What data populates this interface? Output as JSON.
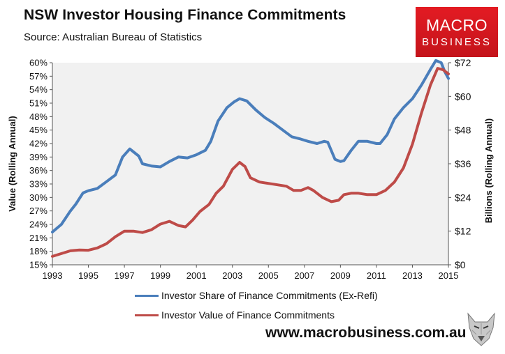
{
  "title": "NSW Investor Housing Finance Commitments",
  "subtitle": "Source: Australian Bureau of Statistics",
  "logo": {
    "line1": "MACRO",
    "line2": "BUSINESS"
  },
  "footer": "www.macrobusiness.com.au",
  "colors": {
    "share": "#4a7ebb",
    "value": "#be4b48",
    "logo_bg": "#e31b23",
    "plot_bg": "#f1f1f1"
  },
  "chart_data": {
    "type": "line",
    "title": "NSW Investor Housing Finance Commitments",
    "xlabel": "",
    "ylabel_left": "Value (Rolling Annual)",
    "ylabel_right": "Billions (Rolling Annual)",
    "xlim": [
      1993,
      2015
    ],
    "ylim_left": [
      15,
      60
    ],
    "ylim_right": [
      0,
      72
    ],
    "x_ticks": [
      "1993",
      "1995",
      "1997",
      "1999",
      "2001",
      "2003",
      "2005",
      "2007",
      "2009",
      "2011",
      "2013",
      "2015"
    ],
    "y_left_ticks": [
      "15%",
      "18%",
      "21%",
      "24%",
      "27%",
      "30%",
      "33%",
      "36%",
      "39%",
      "42%",
      "45%",
      "48%",
      "51%",
      "54%",
      "57%",
      "60%"
    ],
    "y_right_ticks": [
      "$0",
      "$12",
      "$24",
      "$36",
      "$48",
      "$60",
      "$72"
    ],
    "grid": false,
    "legend_position": "bottom",
    "series": [
      {
        "name": "Investor Share of Finance Commitments (Ex-Refi)",
        "axis": "left",
        "color": "#4a7ebb",
        "x": [
          1993,
          1993.5,
          1994,
          1994.3,
          1994.7,
          1995,
          1995.5,
          1996,
          1996.5,
          1996.9,
          1997.3,
          1997.8,
          1998,
          1998.5,
          1999,
          1999.5,
          2000,
          2000.5,
          2001,
          2001.5,
          2001.8,
          2002.2,
          2002.7,
          2003.1,
          2003.4,
          2003.8,
          2004.3,
          2004.8,
          2005.3,
          2005.8,
          2006.3,
          2006.8,
          2007.2,
          2007.7,
          2008.1,
          2008.3,
          2008.7,
          2009,
          2009.2,
          2009.6,
          2010,
          2010.5,
          2011,
          2011.2,
          2011.6,
          2012,
          2012.5,
          2013,
          2013.5,
          2014,
          2014.3,
          2014.6,
          2014.8,
          2015
        ],
        "y": [
          22.3,
          24,
          27,
          28.5,
          31,
          31.5,
          32,
          33.5,
          35,
          39,
          40.8,
          39.2,
          37.5,
          37,
          36.8,
          38,
          39,
          38.8,
          39.5,
          40.5,
          42.5,
          47,
          50,
          51.3,
          52,
          51.5,
          49.5,
          47.8,
          46.5,
          45,
          43.5,
          43,
          42.5,
          42,
          42.5,
          42.3,
          38.5,
          38,
          38.2,
          40.5,
          42.5,
          42.5,
          42,
          42,
          44,
          47.5,
          50,
          52,
          55,
          58.5,
          60.5,
          60,
          58,
          56.5
        ]
      },
      {
        "name": "Investor Value of Finance Commitments",
        "axis": "right",
        "color": "#be4b48",
        "x": [
          1993,
          1993.5,
          1994,
          1994.5,
          1995,
          1995.5,
          1996,
          1996.5,
          1997,
          1997.5,
          1998,
          1998.5,
          1999,
          1999.5,
          2000,
          2000.4,
          2000.8,
          2001.2,
          2001.7,
          2002.1,
          2002.5,
          2003,
          2003.4,
          2003.7,
          2004,
          2004.5,
          2005,
          2005.5,
          2006,
          2006.4,
          2006.8,
          2007.2,
          2007.5,
          2008,
          2008.5,
          2008.9,
          2009.2,
          2009.6,
          2010,
          2010.5,
          2011,
          2011.5,
          2012,
          2012.5,
          2013,
          2013.5,
          2014,
          2014.4,
          2014.7,
          2015
        ],
        "y": [
          3,
          4,
          5,
          5.3,
          5.2,
          6,
          7.5,
          10,
          12,
          12,
          11.5,
          12.5,
          14.5,
          15.5,
          14,
          13.5,
          16,
          19,
          21.5,
          25.5,
          28,
          34,
          36.5,
          35,
          31,
          29.5,
          29,
          28.5,
          28,
          26.5,
          26.5,
          27.5,
          26.5,
          24,
          22.5,
          23,
          25,
          25.5,
          25.5,
          25,
          25,
          26.5,
          29.5,
          34.5,
          43,
          54,
          64,
          70,
          69.5,
          68
        ]
      }
    ]
  }
}
